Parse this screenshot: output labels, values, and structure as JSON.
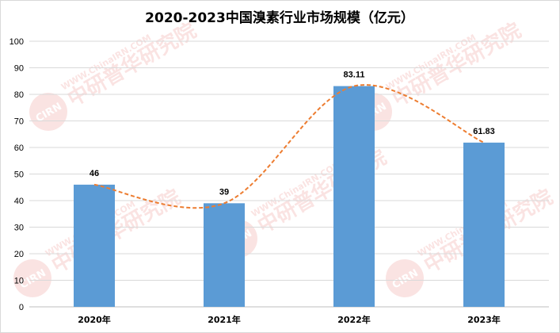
{
  "chart_data": {
    "type": "bar",
    "title": "2020-2023中国溴素行业市场规模（亿元）",
    "categories": [
      "2020年",
      "2021年",
      "2022年",
      "2023年"
    ],
    "values": [
      46,
      39,
      83.11,
      61.83
    ],
    "value_labels": [
      "46",
      "39",
      "83.11",
      "61.83"
    ],
    "xlabel": "",
    "ylabel": "",
    "ylim": [
      0,
      100
    ],
    "yticks": [
      0,
      10,
      20,
      30,
      40,
      50,
      60,
      70,
      80,
      90,
      100
    ],
    "grid": true,
    "trendline": "smooth dashed curve through bar tops",
    "colors": {
      "bar": "#5b9bd5",
      "trend": "#ed7d31",
      "grid": "#d9d9d9",
      "axis": "#bfbfbf"
    }
  },
  "watermark": {
    "logo_text": "CIRN",
    "brand_text": "中研普华研究院",
    "url_text": "WWW.ChinaIRN.COM"
  }
}
